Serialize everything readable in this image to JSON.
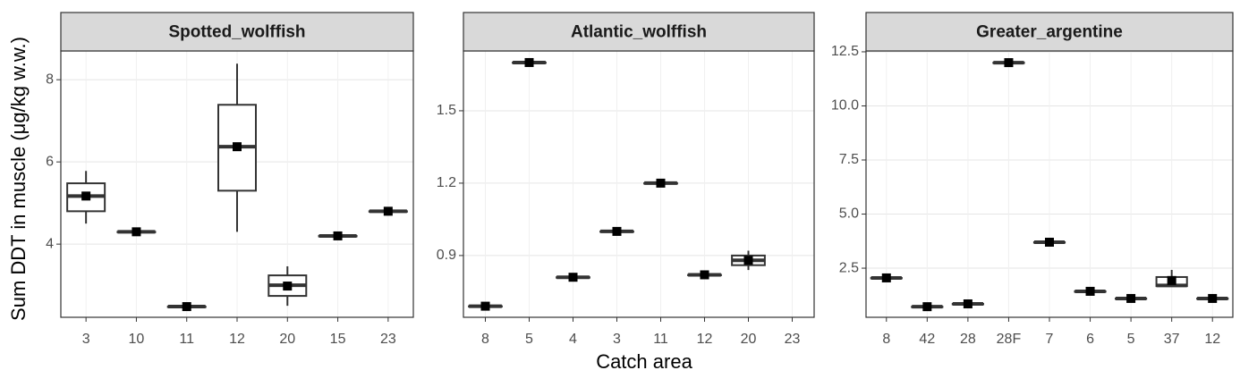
{
  "ylabel": "Sum DDT in muscle (μg/kg w.w.)",
  "xlabel": "Catch area",
  "chart_data": [
    {
      "type": "box",
      "title": "Spotted_wolffish",
      "color": "#333333",
      "grid": true,
      "categories": [
        "3",
        "10",
        "11",
        "12",
        "20",
        "15",
        "23"
      ],
      "min": [
        4.5,
        4.3,
        2.48,
        4.3,
        2.5,
        4.2,
        4.8
      ],
      "q1": [
        4.8,
        4.3,
        2.48,
        5.3,
        2.74,
        4.2,
        4.8
      ],
      "median": [
        5.17,
        4.3,
        2.48,
        6.37,
        3.0,
        4.2,
        4.8
      ],
      "q3": [
        5.48,
        4.3,
        2.48,
        7.39,
        3.24,
        4.2,
        4.8
      ],
      "max": [
        5.78,
        4.3,
        2.48,
        8.39,
        3.46,
        4.2,
        4.8
      ],
      "mean": [
        5.17,
        4.3,
        2.48,
        6.37,
        2.98,
        4.2,
        4.8
      ],
      "ylim": [
        2.22,
        8.7
      ],
      "yticks": [
        4,
        6,
        8
      ]
    },
    {
      "type": "box",
      "title": "Atlantic_wolffish",
      "color": "#333333",
      "grid": true,
      "categories": [
        "8",
        "5",
        "4",
        "3",
        "11",
        "12",
        "20",
        "23"
      ],
      "min": [
        0.69,
        1.7,
        0.81,
        1.0,
        1.2,
        0.82,
        0.84,
        null
      ],
      "q1": [
        0.69,
        1.7,
        0.81,
        1.0,
        1.2,
        0.82,
        0.86,
        null
      ],
      "median": [
        0.69,
        1.7,
        0.81,
        1.0,
        1.2,
        0.82,
        0.88,
        null
      ],
      "q3": [
        0.69,
        1.7,
        0.81,
        1.0,
        1.2,
        0.82,
        0.9,
        null
      ],
      "max": [
        0.69,
        1.7,
        0.81,
        1.0,
        1.2,
        0.82,
        0.92,
        null
      ],
      "mean": [
        0.69,
        1.7,
        0.81,
        1.0,
        1.2,
        0.82,
        0.88,
        null
      ],
      "ylim": [
        0.644,
        1.748
      ],
      "yticks": [
        0.9,
        1.2,
        1.5
      ]
    },
    {
      "type": "box",
      "title": "Greater_argentine",
      "color": "#333333",
      "grid": true,
      "categories": [
        "8",
        "42",
        "28",
        "28F",
        "7",
        "6",
        "5",
        "37",
        "12"
      ],
      "min": [
        2.05,
        0.72,
        0.85,
        12.0,
        3.7,
        1.43,
        1.1,
        1.67,
        1.1
      ],
      "q1": [
        2.05,
        0.72,
        0.85,
        12.0,
        3.7,
        1.43,
        1.1,
        1.67,
        1.1
      ],
      "median": [
        2.05,
        0.72,
        0.85,
        12.0,
        3.7,
        1.43,
        1.1,
        1.7,
        1.1
      ],
      "q3": [
        2.05,
        0.72,
        0.85,
        12.0,
        3.7,
        1.43,
        1.1,
        2.09,
        1.1
      ],
      "max": [
        2.05,
        0.72,
        0.85,
        12.0,
        3.7,
        1.43,
        1.1,
        2.42,
        1.1
      ],
      "mean": [
        2.05,
        0.72,
        0.85,
        12.0,
        3.7,
        1.43,
        1.1,
        1.93,
        1.1
      ],
      "ylim": [
        0.23,
        12.54
      ],
      "yticks": [
        {
          "value": 2.5,
          "label": "2.5"
        },
        {
          "value": 5,
          "label": "5.0"
        },
        {
          "value": 7.5,
          "label": "7.5"
        },
        {
          "value": 10,
          "label": "10.0"
        },
        {
          "value": 12.5,
          "label": "12.5"
        }
      ]
    }
  ]
}
